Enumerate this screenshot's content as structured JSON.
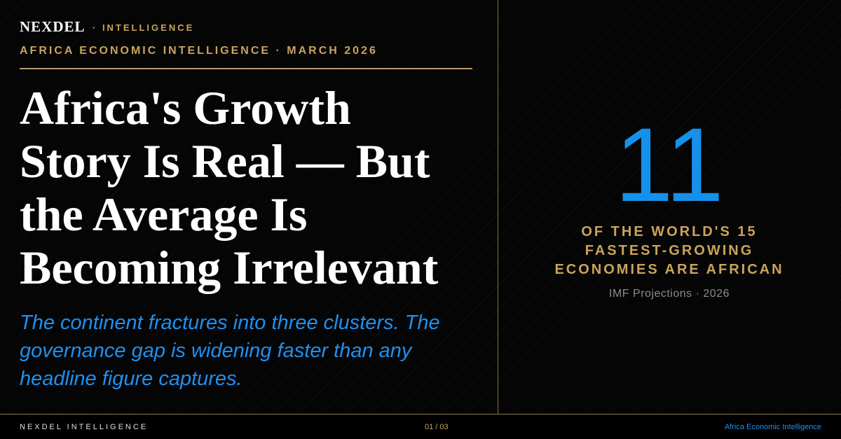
{
  "header": {
    "brand": "NEXDEL",
    "tag": "· INTELLIGENCE",
    "kicker": "AFRICA ECONOMIC INTELLIGENCE · MARCH 2026"
  },
  "headline": [
    "Africa's Growth",
    "Story Is Real — But",
    "the Average Is",
    "Becoming Irrelevant"
  ],
  "subhead": [
    "The continent fractures into three clusters. The",
    "governance gap is widening faster than any",
    "headline figure captures."
  ],
  "stat": {
    "number": 11,
    "caption": [
      "OF THE WORLD'S 15",
      "FASTEST-GROWING",
      "ECONOMIES ARE AFRICAN"
    ],
    "source": "IMF Projections · 2026"
  },
  "footer": {
    "left": "NEXDEL INTELLIGENCE",
    "page": "01 / 03",
    "right": "Africa Economic Intelligence"
  }
}
